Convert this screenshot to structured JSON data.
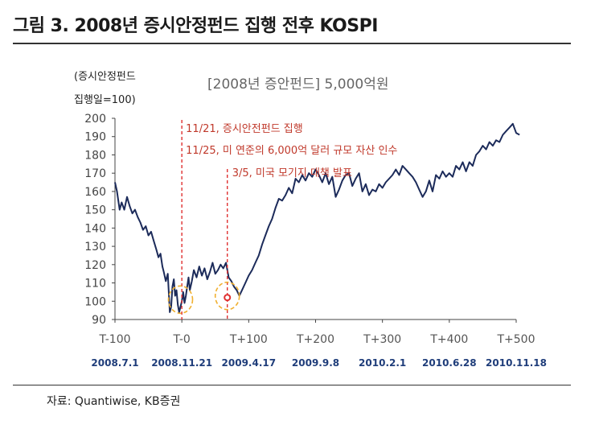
{
  "header": {
    "title": "그림 3. 2008년 증시안정펀드 집행 전후 KOSPI"
  },
  "footer": {
    "source": "자료: Quantiwise, KB증권"
  },
  "chart_data": {
    "type": "line",
    "title": "[2008년 증안펀드] 5,000억원",
    "ylabel_lines": [
      "(증시안정펀드",
      "집행일=100)"
    ],
    "ylim": [
      90,
      200
    ],
    "yticks": [
      90,
      100,
      110,
      120,
      130,
      140,
      150,
      160,
      170,
      180,
      190,
      200
    ],
    "xlim": [
      -100,
      500
    ],
    "xticks": [
      -100,
      0,
      100,
      200,
      300,
      400,
      500
    ],
    "xtick_labels": [
      "T-100",
      "T-0",
      "T+100",
      "T+200",
      "T+300",
      "T+400",
      "T+500"
    ],
    "xtick_dates": [
      "2008.7.1",
      "2008.11.21",
      "2009.4.17",
      "2009.9.8",
      "2010.2.1",
      "2010.6.28",
      "2010.11.18"
    ],
    "grid": false,
    "line_color": "#1c2b5a",
    "series": [
      {
        "x": [
          -100,
          -97,
          -93,
          -90,
          -86,
          -82,
          -78,
          -74,
          -70,
          -66,
          -62,
          -58,
          -54,
          -50,
          -46,
          -42,
          -38,
          -35,
          -32,
          -29,
          -27,
          -24,
          -21,
          -18,
          -16,
          -14,
          -12,
          -10,
          -8,
          -6,
          -4,
          -2,
          0,
          2,
          4,
          6,
          8,
          10,
          12,
          15,
          18,
          22,
          26,
          30,
          34,
          38,
          42,
          46,
          50,
          54,
          58,
          62,
          66,
          70,
          74,
          78,
          82,
          86,
          90,
          95,
          100,
          105,
          110,
          115,
          120,
          125,
          130,
          135,
          140,
          145,
          150,
          155,
          160,
          165,
          170,
          175,
          180,
          185,
          190,
          195,
          200,
          205,
          210,
          215,
          220,
          225,
          230,
          235,
          240,
          245,
          250,
          255,
          260,
          265,
          270,
          275,
          280,
          285,
          290,
          295,
          300,
          305,
          310,
          315,
          320,
          325,
          330,
          335,
          340,
          345,
          350,
          355,
          360,
          365,
          370,
          375,
          380,
          385,
          390,
          395,
          400,
          405,
          410,
          415,
          420,
          425,
          430,
          435,
          440,
          445,
          450,
          455,
          460,
          465,
          470,
          475,
          480,
          485,
          490,
          495,
          500,
          505
        ],
        "y": [
          165,
          160,
          150,
          154,
          150,
          157,
          152,
          148,
          150,
          146,
          143,
          139,
          141,
          136,
          138,
          133,
          128,
          124,
          126,
          119,
          116,
          111,
          115,
          94,
          97,
          108,
          112,
          103,
          106,
          98,
          94,
          97,
          100,
          105,
          99,
          103,
          108,
          113,
          106,
          111,
          117,
          113,
          119,
          114,
          118,
          112,
          116,
          121,
          115,
          117,
          120,
          118,
          121,
          113,
          111,
          108,
          106,
          103,
          106,
          110,
          114,
          117,
          121,
          125,
          131,
          136,
          141,
          145,
          151,
          156,
          155,
          158,
          162,
          159,
          167,
          165,
          169,
          166,
          170,
          168,
          172,
          169,
          165,
          170,
          164,
          168,
          157,
          161,
          166,
          169,
          170,
          163,
          167,
          170,
          160,
          164,
          158,
          161,
          160,
          164,
          162,
          165,
          167,
          169,
          172,
          169,
          174,
          172,
          170,
          168,
          165,
          161,
          157,
          160,
          166,
          160,
          169,
          167,
          171,
          168,
          170,
          168,
          174,
          172,
          176,
          171,
          176,
          174,
          180,
          182,
          185,
          183,
          187,
          185,
          188,
          187,
          191,
          193,
          195,
          197,
          192,
          191
        ]
      }
    ],
    "annotations": [
      {
        "x": 0,
        "text": "11/21, 증시안전펀드 집행"
      },
      {
        "x": 0,
        "text": "11/25, 미 연준의 6,000억 달러 규모 자산 인수"
      },
      {
        "x": 68,
        "text": "3/5, 미국 모기지 대책 발표"
      }
    ],
    "highlights": [
      {
        "x": -2,
        "y": 100
      },
      {
        "x": 68,
        "y": 102
      }
    ]
  }
}
